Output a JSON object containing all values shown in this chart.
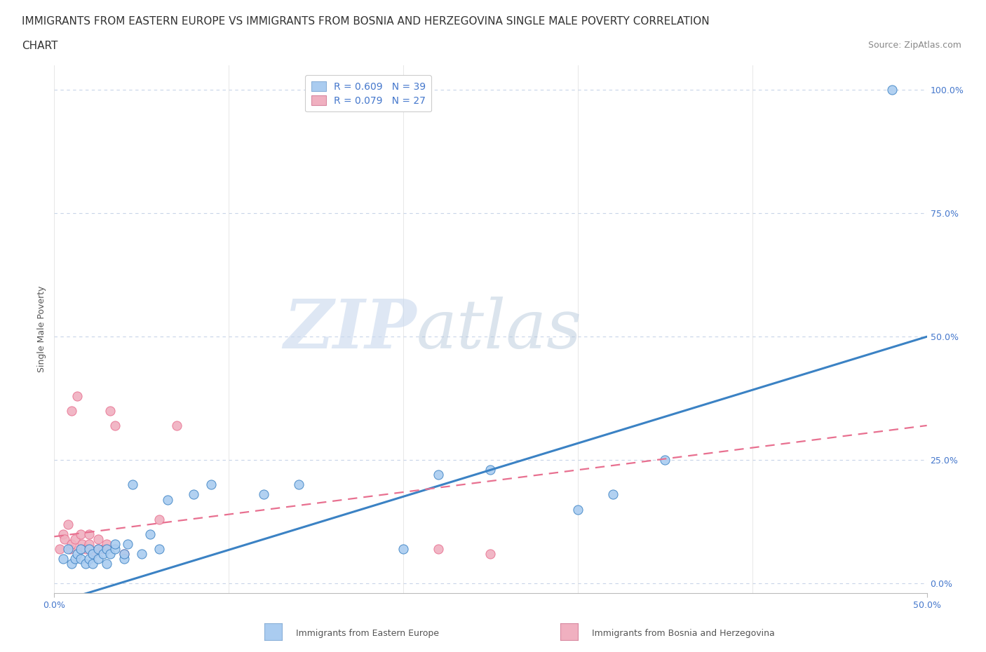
{
  "title_line1": "IMMIGRANTS FROM EASTERN EUROPE VS IMMIGRANTS FROM BOSNIA AND HERZEGOVINA SINGLE MALE POVERTY CORRELATION",
  "title_line2": "CHART",
  "source_text": "Source: ZipAtlas.com",
  "ylabel": "Single Male Poverty",
  "xlim": [
    0.0,
    0.5
  ],
  "ylim": [
    -0.02,
    1.05
  ],
  "xtick_labels": [
    "0.0%",
    "50.0%"
  ],
  "xtick_vals": [
    0.0,
    0.5
  ],
  "ytick_labels": [
    "0.0%",
    "25.0%",
    "50.0%",
    "75.0%",
    "100.0%"
  ],
  "ytick_vals": [
    0.0,
    0.25,
    0.5,
    0.75,
    1.0
  ],
  "legend_entries": [
    {
      "label": "R = 0.609   N = 39",
      "color": "#aaccf0"
    },
    {
      "label": "R = 0.079   N = 27",
      "color": "#f0b0c0"
    }
  ],
  "blue_scatter_x": [
    0.005,
    0.008,
    0.01,
    0.012,
    0.013,
    0.015,
    0.015,
    0.018,
    0.02,
    0.02,
    0.022,
    0.022,
    0.025,
    0.025,
    0.028,
    0.03,
    0.03,
    0.032,
    0.035,
    0.035,
    0.04,
    0.04,
    0.042,
    0.045,
    0.05,
    0.055,
    0.06,
    0.065,
    0.08,
    0.09,
    0.12,
    0.14,
    0.2,
    0.22,
    0.25,
    0.3,
    0.32,
    0.35,
    0.48
  ],
  "blue_scatter_y": [
    0.05,
    0.07,
    0.04,
    0.05,
    0.06,
    0.07,
    0.05,
    0.04,
    0.07,
    0.05,
    0.06,
    0.04,
    0.07,
    0.05,
    0.06,
    0.07,
    0.04,
    0.06,
    0.07,
    0.08,
    0.05,
    0.06,
    0.08,
    0.2,
    0.06,
    0.1,
    0.07,
    0.17,
    0.18,
    0.2,
    0.18,
    0.2,
    0.07,
    0.22,
    0.23,
    0.15,
    0.18,
    0.25,
    1.0
  ],
  "pink_scatter_x": [
    0.003,
    0.005,
    0.006,
    0.008,
    0.009,
    0.01,
    0.01,
    0.012,
    0.013,
    0.015,
    0.015,
    0.016,
    0.018,
    0.02,
    0.02,
    0.022,
    0.025,
    0.025,
    0.028,
    0.03,
    0.032,
    0.035,
    0.04,
    0.06,
    0.07,
    0.22,
    0.25
  ],
  "pink_scatter_y": [
    0.07,
    0.1,
    0.09,
    0.12,
    0.07,
    0.08,
    0.35,
    0.09,
    0.38,
    0.07,
    0.1,
    0.08,
    0.07,
    0.08,
    0.1,
    0.06,
    0.07,
    0.09,
    0.07,
    0.08,
    0.35,
    0.32,
    0.06,
    0.13,
    0.32,
    0.07,
    0.06
  ],
  "blue_line_x": [
    0.0,
    0.5
  ],
  "blue_line_y": [
    -0.04,
    0.5
  ],
  "pink_line_x": [
    0.0,
    0.5
  ],
  "pink_line_y": [
    0.095,
    0.32
  ],
  "blue_line_color": "#3b82c4",
  "pink_line_color": "#e87090",
  "scatter_blue_color": "#aaccf0",
  "scatter_pink_color": "#f0b0c0",
  "background_color": "#ffffff",
  "grid_color": "#c8d4e8",
  "watermark_zip": "ZIP",
  "watermark_atlas": "atlas",
  "title_fontsize": 11,
  "source_fontsize": 9,
  "axis_label_fontsize": 9,
  "tick_fontsize": 9,
  "legend_fontsize": 10
}
